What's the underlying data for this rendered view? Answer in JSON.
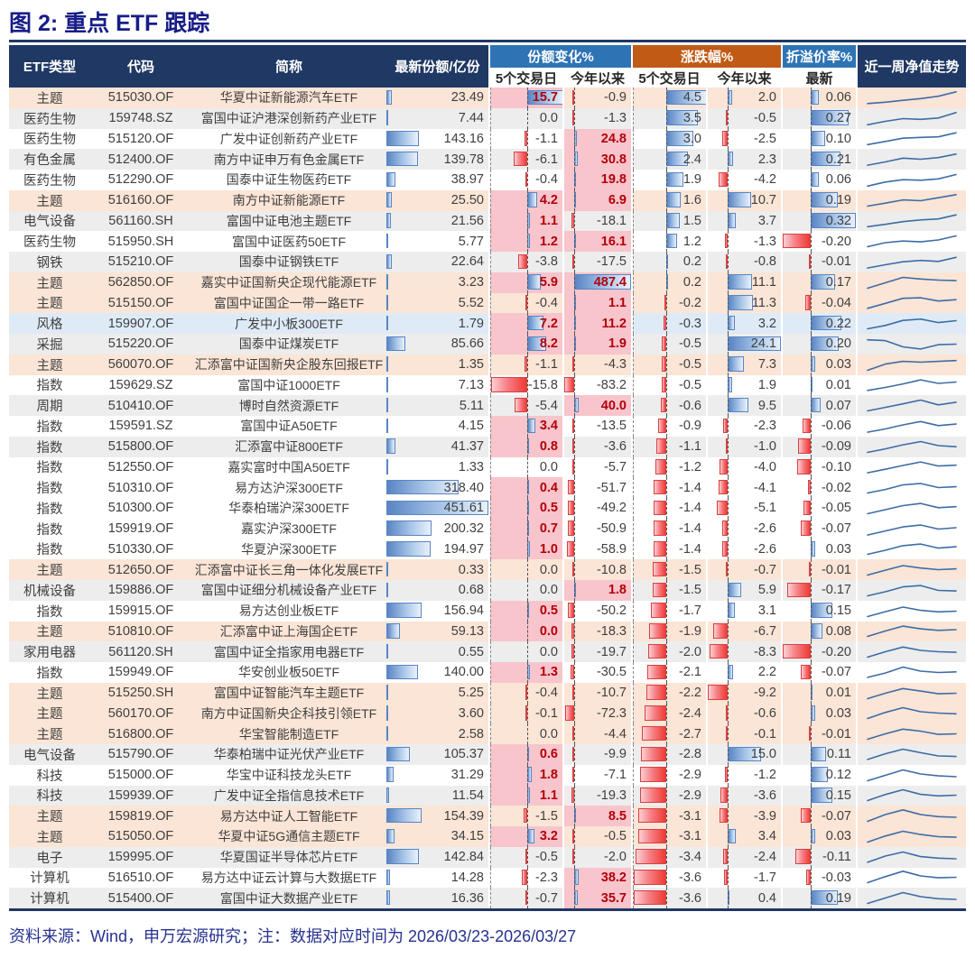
{
  "title": "图 2: 重点 ETF 跟踪",
  "footer": "资料来源：Wind，申万宏源研究；注：数据对应时间为 2026/03/23-2026/03/27",
  "header": {
    "etf_type": "ETF类型",
    "code": "代码",
    "name": "简称",
    "latest_shares": "最新份额/亿份",
    "share_change": "份额变化%",
    "price_change": "涨跌幅%",
    "premium": "折溢价率%",
    "nav_trend": "近一周净值走势",
    "sub_5d": "5个交易日",
    "sub_ytd": "今年以来",
    "sub_latest": "最新"
  },
  "colors": {
    "navy": "#1F3864",
    "group_blue": "#2E74B5",
    "group_orange": "#C05A15",
    "row_peach": "#FBE5D6",
    "row_blue": "#DEEBF7",
    "row_gray": "#EDEDED",
    "row_white": "#FFFFFF",
    "cell_pink": "#F7C5CB",
    "pos_bar": "#5985C4",
    "neg_bar": "#EE3B33",
    "hl_text": "#B3000C",
    "spark_line": "#3D6CA6"
  },
  "chart_data": {
    "type": "table",
    "title": "重点 ETF 跟踪",
    "columns": [
      "ETF类型",
      "代码",
      "简称",
      "最新份额/亿份",
      "份额变化% 5个交易日",
      "份额变化% 今年以来",
      "涨跌幅% 5个交易日",
      "涨跌幅% 今年以来",
      "折溢价率% 最新",
      "近一周净值走势"
    ],
    "rows": [
      {
        "type": "主题",
        "code": "515030.OF",
        "name": "华夏中证新能源汽车ETF",
        "shares": "23.49",
        "s5": "15.7",
        "s5p": true,
        "sy": "-0.9",
        "syp": false,
        "p5": "4.5",
        "py": "2.0",
        "pr": "0.06",
        "bg": "p",
        "spark": [
          0.08,
          0.18,
          0.32,
          0.45,
          0.62,
          0.95
        ]
      },
      {
        "type": "医药生物",
        "code": "159748.SZ",
        "name": "富国中证沪港深创新药产业ETF",
        "shares": "7.44",
        "s5": "0.0",
        "s5p": false,
        "sy": "-1.3",
        "syp": false,
        "p5": "3.5",
        "py": "-0.5",
        "pr": "0.27",
        "bg": "g",
        "spark": [
          0.05,
          0.3,
          0.5,
          0.45,
          0.55,
          0.95
        ]
      },
      {
        "type": "医药生物",
        "code": "515120.OF",
        "name": "广发中证创新药产业ETF",
        "shares": "143.16",
        "s5": "-1.1",
        "s5p": false,
        "sy": "24.8",
        "syp": true,
        "p5": "3.0",
        "py": "-2.5",
        "pr": "0.10",
        "bg": "w",
        "spark": [
          0.05,
          0.28,
          0.52,
          0.58,
          0.62,
          0.92
        ]
      },
      {
        "type": "有色金属",
        "code": "512400.OF",
        "name": "南方中证申万有色金属ETF",
        "shares": "139.78",
        "s5": "-6.1",
        "s5p": false,
        "sy": "30.8",
        "syp": true,
        "p5": "2.4",
        "py": "2.3",
        "pr": "0.21",
        "bg": "g",
        "spark": [
          0.06,
          0.3,
          0.58,
          0.5,
          0.62,
          0.88
        ]
      },
      {
        "type": "医药生物",
        "code": "512290.OF",
        "name": "国泰中证生物医药ETF",
        "shares": "38.97",
        "s5": "-0.4",
        "s5p": false,
        "sy": "19.8",
        "syp": true,
        "p5": "1.9",
        "py": "-4.2",
        "pr": "0.06",
        "bg": "w",
        "spark": [
          0.05,
          0.35,
          0.52,
          0.48,
          0.58,
          0.9
        ]
      },
      {
        "type": "主题",
        "code": "516160.OF",
        "name": "南方中证新能源ETF",
        "shares": "25.50",
        "s5": "4.2",
        "s5p": true,
        "sy": "6.9",
        "syp": true,
        "p5": "1.6",
        "py": "10.7",
        "pr": "0.19",
        "bg": "p",
        "spark": [
          0.1,
          0.32,
          0.56,
          0.5,
          0.72,
          0.95
        ]
      },
      {
        "type": "电气设备",
        "code": "561160.SH",
        "name": "富国中证电池主题ETF",
        "shares": "21.56",
        "s5": "1.1",
        "s5p": true,
        "sy": "-18.1",
        "syp": false,
        "p5": "1.5",
        "py": "3.7",
        "pr": "0.32",
        "bg": "g",
        "spark": [
          0.05,
          0.22,
          0.42,
          0.55,
          0.62,
          0.92
        ]
      },
      {
        "type": "医药生物",
        "code": "515950.SH",
        "name": "富国中证医药50ETF",
        "shares": "5.77",
        "s5": "1.2",
        "s5p": true,
        "sy": "16.1",
        "syp": true,
        "p5": "1.2",
        "py": "-1.3",
        "pr": "-0.20",
        "bg": "w",
        "spark": [
          0.1,
          0.4,
          0.52,
          0.46,
          0.6,
          0.9
        ]
      },
      {
        "type": "钢铁",
        "code": "515210.OF",
        "name": "国泰中证钢铁ETF",
        "shares": "22.64",
        "s5": "-3.8",
        "s5p": false,
        "sy": "-17.5",
        "syp": false,
        "p5": "0.2",
        "py": "-0.8",
        "pr": "-0.01",
        "bg": "g",
        "spark": [
          0.06,
          0.3,
          0.52,
          0.62,
          0.55,
          0.85
        ]
      },
      {
        "type": "主题",
        "code": "562850.OF",
        "name": "嘉实中证国新央企现代能源ETF",
        "shares": "3.23",
        "s5": "5.9",
        "s5p": true,
        "sy": "487.4",
        "syp": true,
        "p5": "0.2",
        "py": "11.1",
        "pr": "0.17",
        "bg": "p",
        "spark": [
          0.1,
          0.5,
          0.9,
          0.78,
          0.7,
          0.66
        ]
      },
      {
        "type": "主题",
        "code": "515150.OF",
        "name": "富国中证国企一带一路ETF",
        "shares": "5.52",
        "s5": "-0.4",
        "s5p": false,
        "sy": "1.1",
        "syp": true,
        "p5": "-0.2",
        "py": "11.3",
        "pr": "-0.04",
        "bg": "p",
        "spark": [
          0.08,
          0.45,
          0.82,
          0.86,
          0.62,
          0.72
        ]
      },
      {
        "type": "风格",
        "code": "159907.OF",
        "name": "广发中小板300ETF",
        "shares": "1.79",
        "s5": "7.2",
        "s5p": true,
        "sy": "11.2",
        "syp": true,
        "p5": "-0.3",
        "py": "3.2",
        "pr": "0.22",
        "bg": "b",
        "spark": [
          0.1,
          0.35,
          0.72,
          0.82,
          0.56,
          0.7
        ]
      },
      {
        "type": "采掘",
        "code": "515220.OF",
        "name": "国泰中证煤炭ETF",
        "shares": "85.66",
        "s5": "8.2",
        "s5p": true,
        "sy": "1.9",
        "syp": true,
        "p5": "-0.5",
        "py": "24.1",
        "pr": "0.20",
        "bg": "g",
        "spark": [
          0.82,
          0.76,
          0.3,
          0.14,
          0.46,
          0.5
        ]
      },
      {
        "type": "主题",
        "code": "560070.OF",
        "name": "汇添富中证国新央企股东回报ETF",
        "shares": "1.35",
        "s5": "-1.1",
        "s5p": false,
        "sy": "-4.3",
        "syp": false,
        "p5": "-0.5",
        "py": "7.3",
        "pr": "0.03",
        "bg": "p",
        "spark": [
          0.1,
          0.56,
          0.76,
          0.7,
          0.76,
          0.82
        ]
      },
      {
        "type": "指数",
        "code": "159629.SZ",
        "name": "富国中证1000ETF",
        "shares": "7.13",
        "s5": "-15.8",
        "s5p": false,
        "sy": "-83.2",
        "syp": false,
        "p5": "-0.5",
        "py": "1.9",
        "pr": "0.01",
        "bg": "w",
        "spark": [
          0.08,
          0.3,
          0.56,
          0.86,
          0.6,
          0.7
        ]
      },
      {
        "type": "周期",
        "code": "510410.OF",
        "name": "博时自然资源ETF",
        "shares": "5.11",
        "s5": "-5.4",
        "s5p": false,
        "sy": "40.0",
        "syp": true,
        "p5": "-0.6",
        "py": "9.5",
        "pr": "0.07",
        "bg": "g",
        "spark": [
          0.1,
          0.36,
          0.62,
          0.9,
          0.55,
          0.74
        ]
      },
      {
        "type": "指数",
        "code": "159591.SZ",
        "name": "富国中证A50ETF",
        "shares": "4.15",
        "s5": "3.4",
        "s5p": true,
        "sy": "-13.5",
        "syp": false,
        "p5": "-0.9",
        "py": "-2.3",
        "pr": "-0.06",
        "bg": "w",
        "spark": [
          0.06,
          0.3,
          0.6,
          0.85,
          0.55,
          0.66
        ]
      },
      {
        "type": "指数",
        "code": "515800.OF",
        "name": "汇添富中证800ETF",
        "shares": "41.37",
        "s5": "0.8",
        "s5p": true,
        "sy": "-3.6",
        "syp": false,
        "p5": "-1.1",
        "py": "-1.0",
        "pr": "-0.09",
        "bg": "g",
        "spark": [
          0.1,
          0.36,
          0.66,
          0.9,
          0.6,
          0.52
        ]
      },
      {
        "type": "指数",
        "code": "512550.OF",
        "name": "嘉实富时中国A50ETF",
        "shares": "1.33",
        "s5": "0.0",
        "s5p": false,
        "sy": "-5.7",
        "syp": false,
        "p5": "-1.2",
        "py": "-4.0",
        "pr": "-0.10",
        "bg": "w",
        "spark": [
          0.06,
          0.32,
          0.6,
          0.86,
          0.56,
          0.62
        ]
      },
      {
        "type": "指数",
        "code": "510310.OF",
        "name": "易方达沪深300ETF",
        "shares": "318.40",
        "s5": "0.4",
        "s5p": true,
        "sy": "-51.7",
        "syp": false,
        "p5": "-1.4",
        "py": "-4.1",
        "pr": "-0.02",
        "bg": "w",
        "spark": [
          0.1,
          0.36,
          0.7,
          0.8,
          0.5,
          0.56
        ]
      },
      {
        "type": "指数",
        "code": "510300.OF",
        "name": "华泰柏瑞沪深300ETF",
        "shares": "451.61",
        "s5": "0.5",
        "s5p": true,
        "sy": "-49.2",
        "syp": false,
        "p5": "-1.4",
        "py": "-5.1",
        "pr": "-0.05",
        "bg": "w",
        "spark": [
          0.1,
          0.4,
          0.7,
          0.86,
          0.55,
          0.62
        ]
      },
      {
        "type": "指数",
        "code": "159919.OF",
        "name": "嘉实沪深300ETF",
        "shares": "200.32",
        "s5": "0.7",
        "s5p": true,
        "sy": "-50.9",
        "syp": false,
        "p5": "-1.4",
        "py": "-2.6",
        "pr": "-0.07",
        "bg": "w",
        "spark": [
          0.06,
          0.36,
          0.66,
          0.8,
          0.5,
          0.6
        ]
      },
      {
        "type": "指数",
        "code": "510330.OF",
        "name": "华夏沪深300ETF",
        "shares": "194.97",
        "s5": "1.0",
        "s5p": true,
        "sy": "-58.9",
        "syp": false,
        "p5": "-1.4",
        "py": "-2.6",
        "pr": "0.03",
        "bg": "w",
        "spark": [
          0.1,
          0.4,
          0.74,
          0.86,
          0.56,
          0.66
        ]
      },
      {
        "type": "主题",
        "code": "512650.OF",
        "name": "汇添富中证长三角一体化发展ETF",
        "shares": "0.33",
        "s5": "0.0",
        "s5p": false,
        "sy": "-10.8",
        "syp": false,
        "p5": "-1.5",
        "py": "-0.7",
        "pr": "-0.01",
        "bg": "p",
        "spark": [
          0.1,
          0.46,
          0.8,
          0.62,
          0.5,
          0.56
        ]
      },
      {
        "type": "机械设备",
        "code": "159886.OF",
        "name": "富国中证细分机械设备产业ETF",
        "shares": "0.68",
        "s5": "0.0",
        "s5p": false,
        "sy": "1.8",
        "syp": true,
        "p5": "-1.5",
        "py": "5.9",
        "pr": "-0.17",
        "bg": "g",
        "spark": [
          0.1,
          0.4,
          0.76,
          0.86,
          0.5,
          0.46
        ]
      },
      {
        "type": "指数",
        "code": "159915.OF",
        "name": "易方达创业板ETF",
        "shares": "156.94",
        "s5": "0.5",
        "s5p": true,
        "sy": "-50.2",
        "syp": false,
        "p5": "-1.7",
        "py": "3.1",
        "pr": "0.15",
        "bg": "w",
        "spark": [
          0.1,
          0.46,
          0.8,
          0.56,
          0.45,
          0.5
        ]
      },
      {
        "type": "主题",
        "code": "510810.OF",
        "name": "汇添富中证上海国企ETF",
        "shares": "59.13",
        "s5": "0.0",
        "s5p": true,
        "sy": "-18.3",
        "syp": false,
        "p5": "-1.9",
        "py": "-6.7",
        "pr": "0.08",
        "bg": "p",
        "spark": [
          0.1,
          0.5,
          0.86,
          0.66,
          0.55,
          0.6
        ]
      },
      {
        "type": "家用电器",
        "code": "561120.SH",
        "name": "富国中证全指家用电器ETF",
        "shares": "0.55",
        "s5": "0.0",
        "s5p": false,
        "sy": "-19.7",
        "syp": false,
        "p5": "-2.0",
        "py": "-8.3",
        "pr": "-0.20",
        "bg": "g",
        "spark": [
          0.1,
          0.5,
          0.85,
          0.6,
          0.5,
          0.46
        ]
      },
      {
        "type": "指数",
        "code": "159949.OF",
        "name": "华安创业板50ETF",
        "shares": "140.00",
        "s5": "1.3",
        "s5p": true,
        "sy": "-30.5",
        "syp": false,
        "p5": "-2.1",
        "py": "2.2",
        "pr": "-0.07",
        "bg": "w",
        "spark": [
          0.14,
          0.46,
          0.9,
          0.6,
          0.5,
          0.55
        ]
      },
      {
        "type": "主题",
        "code": "515250.SH",
        "name": "富国中证智能汽车主题ETF",
        "shares": "5.25",
        "s5": "-0.4",
        "s5p": false,
        "sy": "-10.7",
        "syp": false,
        "p5": "-2.2",
        "py": "-9.2",
        "pr": "0.01",
        "bg": "p",
        "spark": [
          0.1,
          0.5,
          0.85,
          0.66,
          0.46,
          0.5
        ]
      },
      {
        "type": "主题",
        "code": "560170.OF",
        "name": "南方中证国新央企科技引领ETF",
        "shares": "3.60",
        "s5": "-0.1",
        "s5p": false,
        "sy": "-72.3",
        "syp": false,
        "p5": "-2.4",
        "py": "-0.6",
        "pr": "0.03",
        "bg": "p",
        "spark": [
          0.1,
          0.55,
          0.9,
          0.6,
          0.5,
          0.45
        ]
      },
      {
        "type": "主题",
        "code": "516800.OF",
        "name": "华宝智能制造ETF",
        "shares": "2.58",
        "s5": "0.0",
        "s5p": false,
        "sy": "-4.4",
        "syp": false,
        "p5": "-2.7",
        "py": "-0.1",
        "pr": "-0.01",
        "bg": "p",
        "spark": [
          0.1,
          0.5,
          0.85,
          0.7,
          0.46,
          0.5
        ]
      },
      {
        "type": "电气设备",
        "code": "515790.OF",
        "name": "华泰柏瑞中证光伏产业ETF",
        "shares": "105.37",
        "s5": "0.6",
        "s5p": true,
        "sy": "-9.9",
        "syp": false,
        "p5": "-2.8",
        "py": "15.0",
        "pr": "0.11",
        "bg": "g",
        "spark": [
          0.14,
          0.56,
          0.9,
          0.64,
          0.4,
          0.36
        ]
      },
      {
        "type": "科技",
        "code": "515000.OF",
        "name": "华宝中证科技龙头ETF",
        "shares": "31.29",
        "s5": "1.8",
        "s5p": true,
        "sy": "-7.1",
        "syp": false,
        "p5": "-2.9",
        "py": "-1.2",
        "pr": "0.12",
        "bg": "w",
        "spark": [
          0.1,
          0.5,
          0.9,
          0.6,
          0.46,
          0.4
        ]
      },
      {
        "type": "科技",
        "code": "159939.OF",
        "name": "广发中证全指信息技术ETF",
        "shares": "11.54",
        "s5": "1.1",
        "s5p": true,
        "sy": "-19.3",
        "syp": false,
        "p5": "-2.9",
        "py": "-3.6",
        "pr": "0.15",
        "bg": "g",
        "spark": [
          0.1,
          0.55,
          0.9,
          0.56,
          0.45,
          0.5
        ]
      },
      {
        "type": "主题",
        "code": "159819.OF",
        "name": "易方达中证人工智能ETF",
        "shares": "154.39",
        "s5": "-1.5",
        "s5p": false,
        "sy": "8.5",
        "syp": true,
        "p5": "-3.1",
        "py": "-3.9",
        "pr": "-0.07",
        "bg": "p",
        "spark": [
          0.1,
          0.6,
          0.95,
          0.6,
          0.45,
          0.4
        ]
      },
      {
        "type": "主题",
        "code": "515050.OF",
        "name": "华夏中证5G通信主题ETF",
        "shares": "34.15",
        "s5": "3.2",
        "s5p": true,
        "sy": "-0.5",
        "syp": false,
        "p5": "-3.1",
        "py": "3.4",
        "pr": "0.03",
        "bg": "p",
        "spark": [
          0.1,
          0.55,
          0.9,
          0.66,
          0.5,
          0.46
        ]
      },
      {
        "type": "电子",
        "code": "159995.OF",
        "name": "华夏国证半导体芯片ETF",
        "shares": "142.84",
        "s5": "-0.5",
        "s5p": false,
        "sy": "-2.0",
        "syp": false,
        "p5": "-3.4",
        "py": "-2.4",
        "pr": "-0.11",
        "bg": "g",
        "spark": [
          0.14,
          0.6,
          0.9,
          0.56,
          0.45,
          0.4
        ]
      },
      {
        "type": "计算机",
        "code": "516510.OF",
        "name": "易方达中证云计算与大数据ETF",
        "shares": "14.28",
        "s5": "-2.3",
        "s5p": false,
        "sy": "38.2",
        "syp": true,
        "p5": "-3.6",
        "py": "-1.7",
        "pr": "-0.03",
        "bg": "w",
        "spark": [
          0.1,
          0.55,
          0.95,
          0.6,
          0.46,
          0.5
        ]
      },
      {
        "type": "计算机",
        "code": "515400.OF",
        "name": "富国中证大数据产业ETF",
        "shares": "16.36",
        "s5": "-0.7",
        "s5p": false,
        "sy": "35.7",
        "syp": true,
        "p5": "-3.6",
        "py": "0.4",
        "pr": "0.19",
        "bg": "g",
        "spark": [
          0.1,
          0.5,
          0.9,
          0.6,
          0.45,
          0.4
        ]
      }
    ]
  }
}
